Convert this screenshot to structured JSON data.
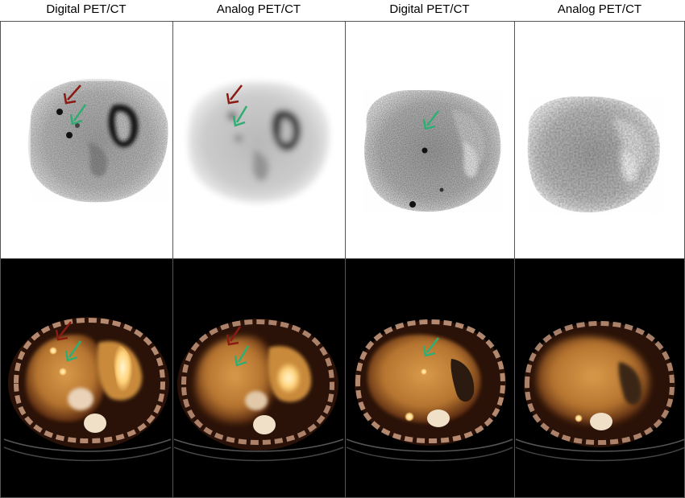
{
  "columns": [
    {
      "title": "Digital PET/CT"
    },
    {
      "title": "Analog PET/CT"
    },
    {
      "title": "Digital PET/CT"
    },
    {
      "title": "Analog PET/CT"
    }
  ],
  "colors": {
    "red_arrow": "#8b1a12",
    "green_arrow": "#2fae73",
    "fusion_tissue": "#c8842f",
    "pet_uptake": "#1a1a1a",
    "background_ct": "#000000"
  }
}
